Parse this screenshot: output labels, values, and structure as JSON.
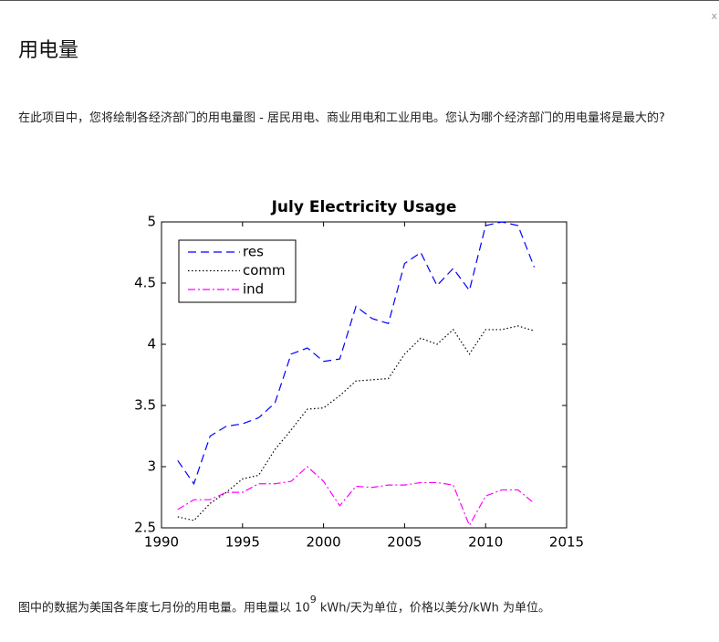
{
  "close": "x",
  "header": {
    "title": "用电量"
  },
  "intro": "在此项目中，您将绘制各经济部门的用电量图 - 居民用电、商业用电和工业用电。您认为哪个经济部门的用电量将是最大的?",
  "chart_data": {
    "type": "line",
    "title": "July Electricity Usage",
    "x": [
      1991,
      1992,
      1993,
      1994,
      1995,
      1996,
      1997,
      1998,
      1999,
      2000,
      2001,
      2002,
      2003,
      2004,
      2005,
      2006,
      2007,
      2008,
      2009,
      2010,
      2011,
      2012,
      2013
    ],
    "series": [
      {
        "name": "res",
        "color": "#0000ff",
        "linestyle": "dashed",
        "values": [
          3.05,
          2.86,
          3.25,
          3.33,
          3.35,
          3.4,
          3.52,
          3.92,
          3.97,
          3.86,
          3.88,
          4.31,
          4.21,
          4.17,
          4.66,
          4.75,
          4.48,
          4.62,
          4.44,
          4.97,
          5.0,
          4.97,
          4.63
        ]
      },
      {
        "name": "comm",
        "color": "#000000",
        "linestyle": "dotted",
        "values": [
          2.59,
          2.56,
          2.7,
          2.79,
          2.9,
          2.93,
          3.14,
          3.3,
          3.47,
          3.48,
          3.58,
          3.7,
          3.71,
          3.72,
          3.92,
          4.05,
          4.0,
          4.12,
          3.92,
          4.12,
          4.12,
          4.15,
          4.11
        ]
      },
      {
        "name": "ind",
        "color": "#ff00ff",
        "linestyle": "dashdot",
        "values": [
          2.65,
          2.73,
          2.73,
          2.79,
          2.79,
          2.86,
          2.86,
          2.88,
          3.0,
          2.88,
          2.68,
          2.84,
          2.83,
          2.85,
          2.85,
          2.87,
          2.87,
          2.85,
          2.52,
          2.76,
          2.81,
          2.81,
          2.7
        ]
      }
    ],
    "xlim": [
      1990,
      2015
    ],
    "xticks": [
      1990,
      1995,
      2000,
      2005,
      2010,
      2015
    ],
    "ylim": [
      2.5,
      5
    ],
    "yticks": [
      2.5,
      3,
      3.5,
      4,
      4.5,
      5
    ],
    "legend": "upper-left"
  },
  "footer": {
    "before": "图中的数据为美国各年度七月份的用电量。用电量以 10",
    "sup": "9",
    "after": " kWh/天为单位，价格以美分/kWh 为单位。"
  }
}
